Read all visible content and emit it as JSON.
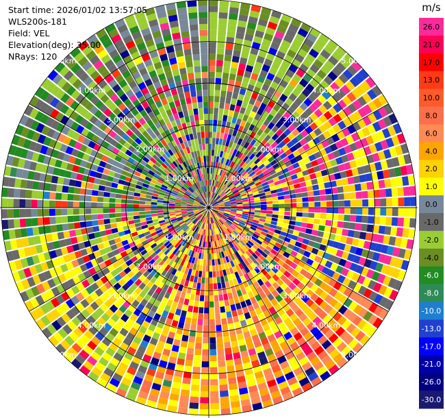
{
  "header": {
    "start_time": "Start time: 2026/01/02 13:57:05",
    "instrument": "WLS200s-181",
    "field": "Field: VEL",
    "elevation": "Elevation(deg): 35.00",
    "nrays": "NRays: 120"
  },
  "chart_data": {
    "type": "heatmap",
    "projection": "polar-ppi",
    "field": "VEL",
    "units": "m/s",
    "n_rays": 120,
    "max_range_km": 5.0,
    "range_rings_km": [
      1.0,
      2.0,
      3.0,
      4.0,
      5.0
    ],
    "range_ring_labels": [
      "1.00km",
      "2.00km",
      "3.00km",
      "4.00km",
      "5.00km"
    ],
    "spokes_deg": [
      0,
      30,
      60,
      90,
      120,
      150,
      180,
      210,
      240,
      270,
      300,
      330
    ],
    "colorbar": {
      "title": "m/s",
      "tick_labels": [
        "26.0",
        "21.0",
        "17.0",
        "13.0",
        "10.0",
        "8.0",
        "6.0",
        "4.0",
        "2.0",
        "1.0",
        "0.0",
        "-1.0",
        "-2.0",
        "-4.0",
        "-6.0",
        "-8.0",
        "-10.0",
        "-13.0",
        "-17.0",
        "-21.0",
        "-26.0",
        "-30.0"
      ],
      "bins": [
        {
          "min": 26,
          "max": 30,
          "color": "#ff2a9a"
        },
        {
          "min": 21,
          "max": 26,
          "color": "#ff0055"
        },
        {
          "min": 17,
          "max": 21,
          "color": "#ff0000"
        },
        {
          "min": 13,
          "max": 17,
          "color": "#ff3a14"
        },
        {
          "min": 10,
          "max": 13,
          "color": "#ff5a2a"
        },
        {
          "min": 8,
          "max": 10,
          "color": "#ff6e4a"
        },
        {
          "min": 6,
          "max": 8,
          "color": "#ff8a55"
        },
        {
          "min": 4,
          "max": 6,
          "color": "#ffa500"
        },
        {
          "min": 2,
          "max": 4,
          "color": "#ffd200"
        },
        {
          "min": 1,
          "max": 2,
          "color": "#ffff00"
        },
        {
          "min": 0,
          "max": 1,
          "color": "#778899"
        },
        {
          "min": -1,
          "max": 0,
          "color": "#696969"
        },
        {
          "min": -2,
          "max": -1,
          "color": "#9acd32"
        },
        {
          "min": -4,
          "max": -2,
          "color": "#6b8e23"
        },
        {
          "min": -6,
          "max": -4,
          "color": "#228b22"
        },
        {
          "min": -8,
          "max": -6,
          "color": "#2e8b57"
        },
        {
          "min": -10,
          "max": -8,
          "color": "#1e7fd0"
        },
        {
          "min": -13,
          "max": -10,
          "color": "#2040d0"
        },
        {
          "min": -17,
          "max": -13,
          "color": "#0000ff"
        },
        {
          "min": -21,
          "max": -17,
          "color": "#0000aa"
        },
        {
          "min": -26,
          "max": -21,
          "color": "#000080"
        },
        {
          "min": -30,
          "max": -26,
          "color": "#191970"
        }
      ]
    },
    "sectors": [
      {
        "az_from": 0,
        "az_to": 45,
        "dominant_values": [
          -2.0,
          -0.5,
          -1.5
        ]
      },
      {
        "az_from": 45,
        "az_to": 120,
        "dominant_values": [
          1.5,
          3.0,
          -0.5,
          -12.0,
          27.0
        ]
      },
      {
        "az_from": 120,
        "az_to": 200,
        "dominant_values": [
          1.5,
          3.0,
          5.0,
          7.0,
          9.0
        ]
      },
      {
        "az_from": 200,
        "az_to": 260,
        "dominant_values": [
          1.5,
          -1.5,
          -0.5,
          3.0
        ]
      },
      {
        "az_from": 260,
        "az_to": 360,
        "dominant_values": [
          -1.5,
          -3.0,
          -0.5,
          0.5,
          -5.0
        ]
      }
    ]
  }
}
